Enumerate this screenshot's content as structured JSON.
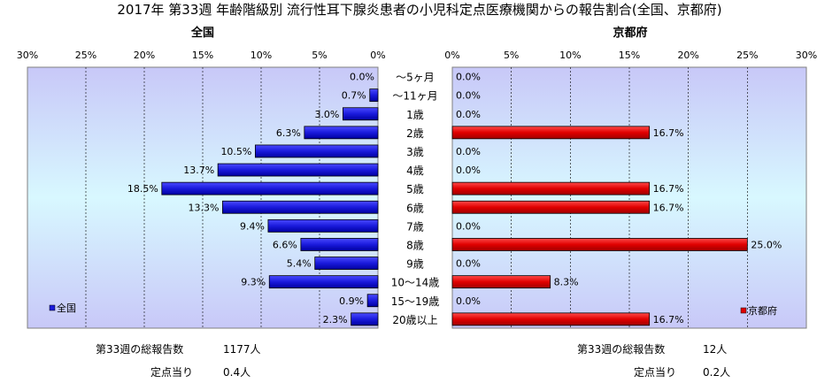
{
  "title": "2017年 第33週 年齢階級別 流行性耳下腺炎患者の小児科定点医療機関からの報告割合(全国、京都府)",
  "colors": {
    "national": "#1a1adc",
    "kyoto": "#e00000",
    "plot_bg_edge": "#c8c8f8",
    "plot_bg_center": "#d8f8ff"
  },
  "chart_data": [
    {
      "type": "bar",
      "orientation": "horizontal",
      "direction": "right-to-left",
      "title": "全国",
      "categories": [
        "～5ヶ月",
        "～11ヶ月",
        "1歳",
        "2歳",
        "3歳",
        "4歳",
        "5歳",
        "6歳",
        "7歳",
        "8歳",
        "9歳",
        "10～14歳",
        "15～19歳",
        "20歳以上"
      ],
      "series": [
        {
          "name": "全国",
          "values": [
            0.0,
            0.7,
            3.0,
            6.3,
            10.5,
            13.7,
            18.5,
            13.3,
            9.4,
            6.6,
            5.4,
            9.3,
            0.9,
            2.3
          ],
          "labels": [
            "0.0%",
            "0.7%",
            "3.0%",
            "6.3%",
            "10.5%",
            "13.7%",
            "18.5%",
            "13.3%",
            "9.4%",
            "6.6%",
            "5.4%",
            "9.3%",
            "0.9%",
            "2.3%"
          ]
        }
      ],
      "xlim": [
        0,
        30
      ],
      "ticks": [
        "30%",
        "25%",
        "20%",
        "15%",
        "10%",
        "5%",
        "0%"
      ],
      "grid": true,
      "legend": "bottom-left"
    },
    {
      "type": "bar",
      "orientation": "horizontal",
      "direction": "left-to-right",
      "title": "京都府",
      "categories": [
        "～5ヶ月",
        "～11ヶ月",
        "1歳",
        "2歳",
        "3歳",
        "4歳",
        "5歳",
        "6歳",
        "7歳",
        "8歳",
        "9歳",
        "10～14歳",
        "15～19歳",
        "20歳以上"
      ],
      "series": [
        {
          "name": "京都府",
          "values": [
            0.0,
            0.0,
            0.0,
            16.7,
            0.0,
            0.0,
            16.7,
            16.7,
            0.0,
            25.0,
            0.0,
            8.3,
            0.0,
            16.7
          ],
          "labels": [
            "0.0%",
            "0.0%",
            "0.0%",
            "16.7%",
            "0.0%",
            "0.0%",
            "16.7%",
            "16.7%",
            "0.0%",
            "25.0%",
            "0.0%",
            "8.3%",
            "0.0%",
            "16.7%"
          ]
        }
      ],
      "xlim": [
        0,
        30
      ],
      "ticks": [
        "0%",
        "5%",
        "10%",
        "15%",
        "20%",
        "25%",
        "30%"
      ],
      "grid": true,
      "legend": "bottom-right"
    }
  ],
  "summary": {
    "national": {
      "label_total": "第33週の総報告数",
      "value_total": "1177人",
      "label_per": "定点当り",
      "value_per": "0.4人"
    },
    "kyoto": {
      "label_total": "第33週の総報告数",
      "value_total": "12人",
      "label_per": "定点当り",
      "value_per": "0.2人"
    }
  }
}
